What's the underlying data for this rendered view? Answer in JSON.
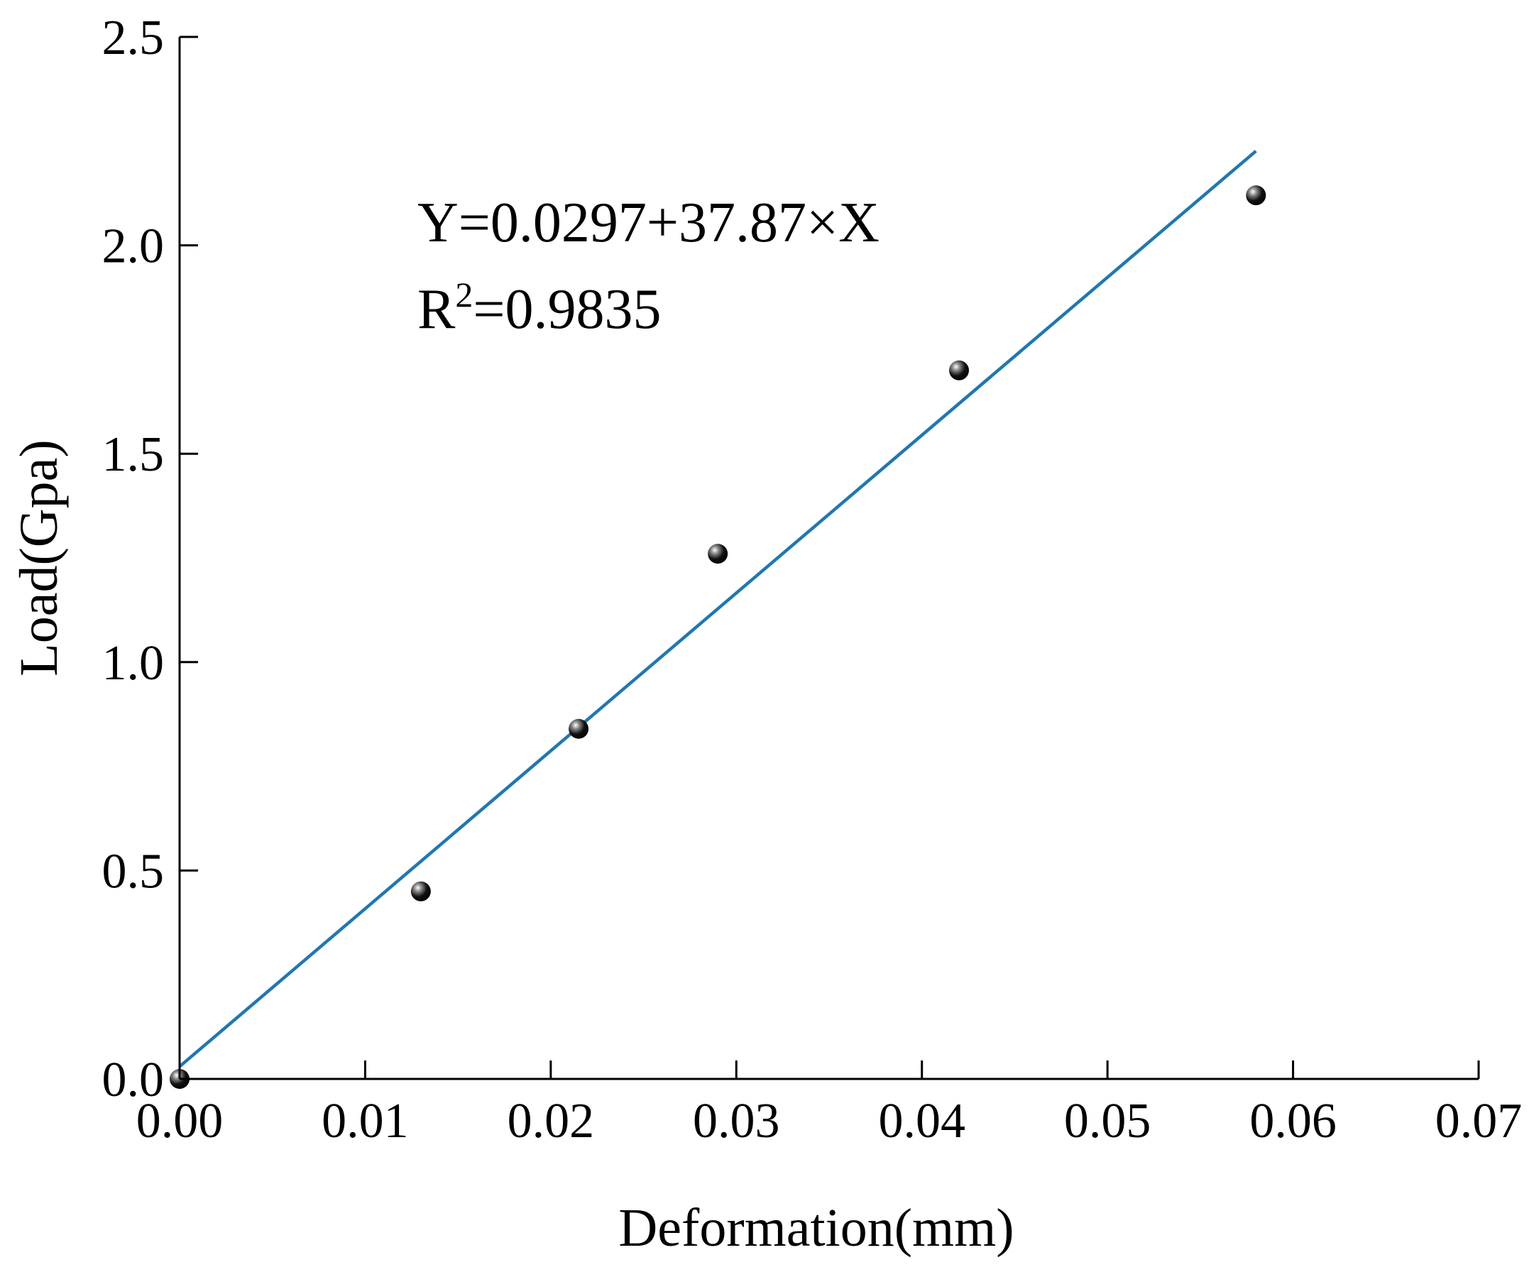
{
  "chart_data": {
    "type": "scatter",
    "xlabel": "Deformation(mm)",
    "ylabel": "Load(Gpa)",
    "xlim": [
      0,
      0.07
    ],
    "ylim": [
      0,
      2.5
    ],
    "x_ticks": [
      "0.00",
      "0.01",
      "0.02",
      "0.03",
      "0.04",
      "0.05",
      "0.06",
      "0.07"
    ],
    "y_ticks": [
      "0.0",
      "0.5",
      "1.0",
      "1.5",
      "2.0",
      "2.5"
    ],
    "grid": false,
    "series": [
      {
        "points": [
          {
            "x": 0.0,
            "y": 0.0
          },
          {
            "x": 0.013,
            "y": 0.45
          },
          {
            "x": 0.0215,
            "y": 0.84
          },
          {
            "x": 0.029,
            "y": 1.26
          },
          {
            "x": 0.042,
            "y": 1.7
          },
          {
            "x": 0.058,
            "y": 2.12
          }
        ]
      }
    ],
    "fit": {
      "intercept": 0.0297,
      "slope": 37.87,
      "x_range": [
        0,
        0.058
      ],
      "color": "#1f77b4"
    },
    "annotation": {
      "equation": "Y=0.0297+37.87×X",
      "r2_base": "R",
      "r2_sup": "2",
      "r2_value": "=0.9835"
    }
  }
}
